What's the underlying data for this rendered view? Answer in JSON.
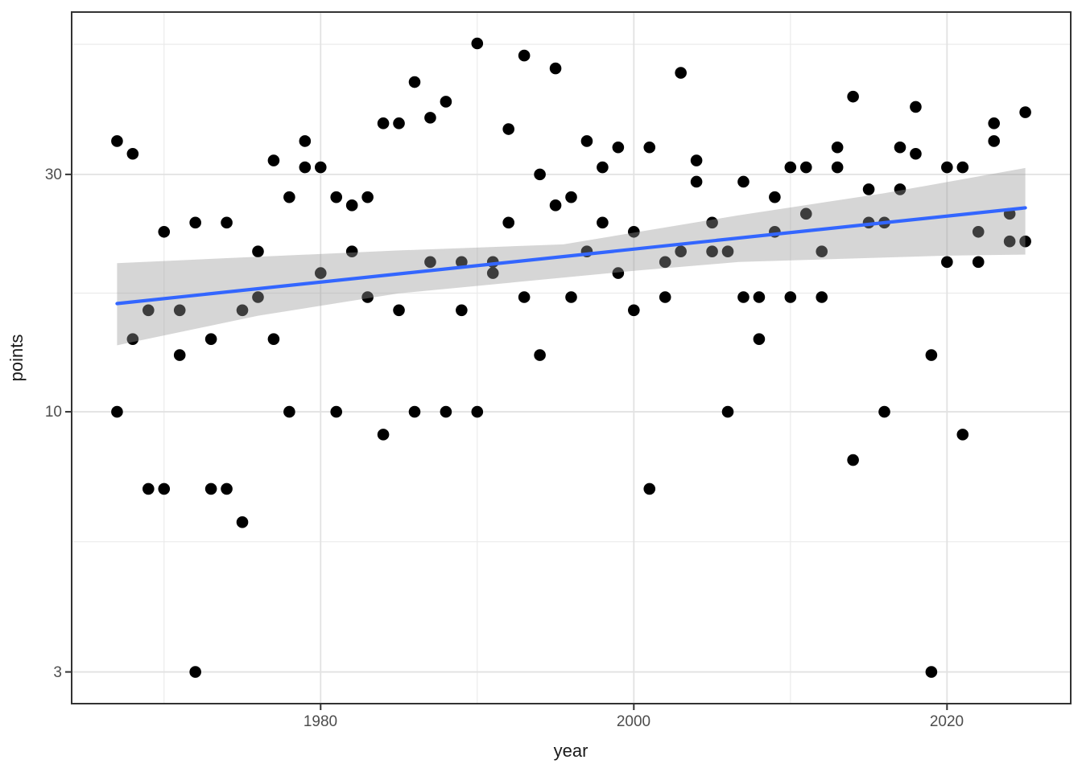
{
  "chart_data": {
    "type": "scatter",
    "title": "",
    "xlabel": "year",
    "ylabel": "points",
    "x_scale": "linear",
    "y_scale": "log10",
    "x_range": [
      1964.1,
      2027.9
    ],
    "y_range_log10": [
      0.4134,
      1.8034
    ],
    "x_ticks": [
      1980,
      2000,
      2020
    ],
    "x_tick_labels": [
      "1980",
      "2000",
      "2020"
    ],
    "x_minor_breaks": [
      1970,
      1990,
      2010
    ],
    "y_ticks": [
      30,
      10,
      3
    ],
    "y_tick_labels": [
      "30",
      "10",
      "3"
    ],
    "y_minor_breaks": [
      54.77,
      17.32,
      5.48
    ],
    "grid": true,
    "legend": "none",
    "points": [
      [
        1967,
        35
      ],
      [
        1967,
        10
      ],
      [
        1968,
        33
      ],
      [
        1968,
        14
      ],
      [
        1969,
        16
      ],
      [
        1969,
        7
      ],
      [
        1970,
        23
      ],
      [
        1970,
        7
      ],
      [
        1971,
        16
      ],
      [
        1971,
        13
      ],
      [
        1972,
        24
      ],
      [
        1972,
        3
      ],
      [
        1973,
        14
      ],
      [
        1973,
        7
      ],
      [
        1974,
        24
      ],
      [
        1974,
        7
      ],
      [
        1975,
        16
      ],
      [
        1975,
        6
      ],
      [
        1976,
        21
      ],
      [
        1976,
        17
      ],
      [
        1977,
        32
      ],
      [
        1977,
        14
      ],
      [
        1978,
        27
      ],
      [
        1978,
        10
      ],
      [
        1979,
        35
      ],
      [
        1979,
        31
      ],
      [
        1980,
        31
      ],
      [
        1980,
        19
      ],
      [
        1981,
        27
      ],
      [
        1981,
        10
      ],
      [
        1982,
        26
      ],
      [
        1982,
        21
      ],
      [
        1983,
        27
      ],
      [
        1983,
        17
      ],
      [
        1984,
        38
      ],
      [
        1984,
        9
      ],
      [
        1985,
        38
      ],
      [
        1985,
        16
      ],
      [
        1986,
        46
      ],
      [
        1986,
        10
      ],
      [
        1987,
        39
      ],
      [
        1987,
        20
      ],
      [
        1988,
        42
      ],
      [
        1988,
        10
      ],
      [
        1989,
        20
      ],
      [
        1989,
        16
      ],
      [
        1990,
        55
      ],
      [
        1990,
        10
      ],
      [
        1991,
        20
      ],
      [
        1991,
        19
      ],
      [
        1992,
        37
      ],
      [
        1992,
        24
      ],
      [
        1993,
        52
      ],
      [
        1993,
        17
      ],
      [
        1994,
        30
      ],
      [
        1994,
        13
      ],
      [
        1995,
        49
      ],
      [
        1995,
        26
      ],
      [
        1996,
        27
      ],
      [
        1996,
        17
      ],
      [
        1997,
        35
      ],
      [
        1997,
        21
      ],
      [
        1998,
        31
      ],
      [
        1998,
        24
      ],
      [
        1999,
        34
      ],
      [
        1999,
        19
      ],
      [
        2000,
        23
      ],
      [
        2000,
        16
      ],
      [
        2001,
        34
      ],
      [
        2001,
        7
      ],
      [
        2002,
        20
      ],
      [
        2002,
        17
      ],
      [
        2003,
        48
      ],
      [
        2003,
        21
      ],
      [
        2004,
        32
      ],
      [
        2004,
        29
      ],
      [
        2005,
        24
      ],
      [
        2005,
        21
      ],
      [
        2006,
        21
      ],
      [
        2006,
        10
      ],
      [
        2007,
        29
      ],
      [
        2007,
        17
      ],
      [
        2008,
        17
      ],
      [
        2008,
        14
      ],
      [
        2009,
        27
      ],
      [
        2009,
        23
      ],
      [
        2010,
        31
      ],
      [
        2010,
        17
      ],
      [
        2011,
        31
      ],
      [
        2011,
        25
      ],
      [
        2012,
        21
      ],
      [
        2012,
        17
      ],
      [
        2013,
        34
      ],
      [
        2013,
        31
      ],
      [
        2014,
        43
      ],
      [
        2014,
        8
      ],
      [
        2015,
        28
      ],
      [
        2015,
        24
      ],
      [
        2016,
        24
      ],
      [
        2016,
        10
      ],
      [
        2017,
        34
      ],
      [
        2017,
        28
      ],
      [
        2018,
        41
      ],
      [
        2018,
        33
      ],
      [
        2019,
        13
      ],
      [
        2019,
        3
      ],
      [
        2020,
        31
      ],
      [
        2020,
        20
      ],
      [
        2021,
        31
      ],
      [
        2021,
        9
      ],
      [
        2022,
        23
      ],
      [
        2022,
        20
      ],
      [
        2023,
        38
      ],
      [
        2023,
        35
      ],
      [
        2024,
        25
      ],
      [
        2024,
        22
      ],
      [
        2025,
        40
      ],
      [
        2025,
        22
      ]
    ],
    "smooth_line": {
      "color": "#3366FF",
      "endpoints": [
        [
          1967,
          16.5
        ],
        [
          2025,
          25.7
        ]
      ]
    },
    "confidence_band": {
      "fill": "#999999",
      "opacity": 0.4,
      "top": [
        [
          1967,
          19.9
        ],
        [
          1985,
          21.1
        ],
        [
          1995.5,
          21.7
        ],
        [
          2006.6,
          24.8
        ],
        [
          2016,
          27.5
        ],
        [
          2025,
          30.9
        ]
      ],
      "bottom": [
        [
          2025,
          20.7
        ],
        [
          2020,
          20.6
        ],
        [
          2006.7,
          20.0
        ],
        [
          2000,
          19.2
        ],
        [
          1985,
          17.3
        ],
        [
          1976,
          15.6
        ],
        [
          1967,
          13.6
        ]
      ]
    },
    "colors": {
      "point": "#000000",
      "grid_major": "#e2e2e2",
      "grid_minor": "#ebebeb",
      "panel_border": "#333333",
      "tick_mark": "#333333",
      "tick_label": "#4d4d4d",
      "axis_title": "#1a1a1a",
      "background": "#ffffff"
    }
  }
}
